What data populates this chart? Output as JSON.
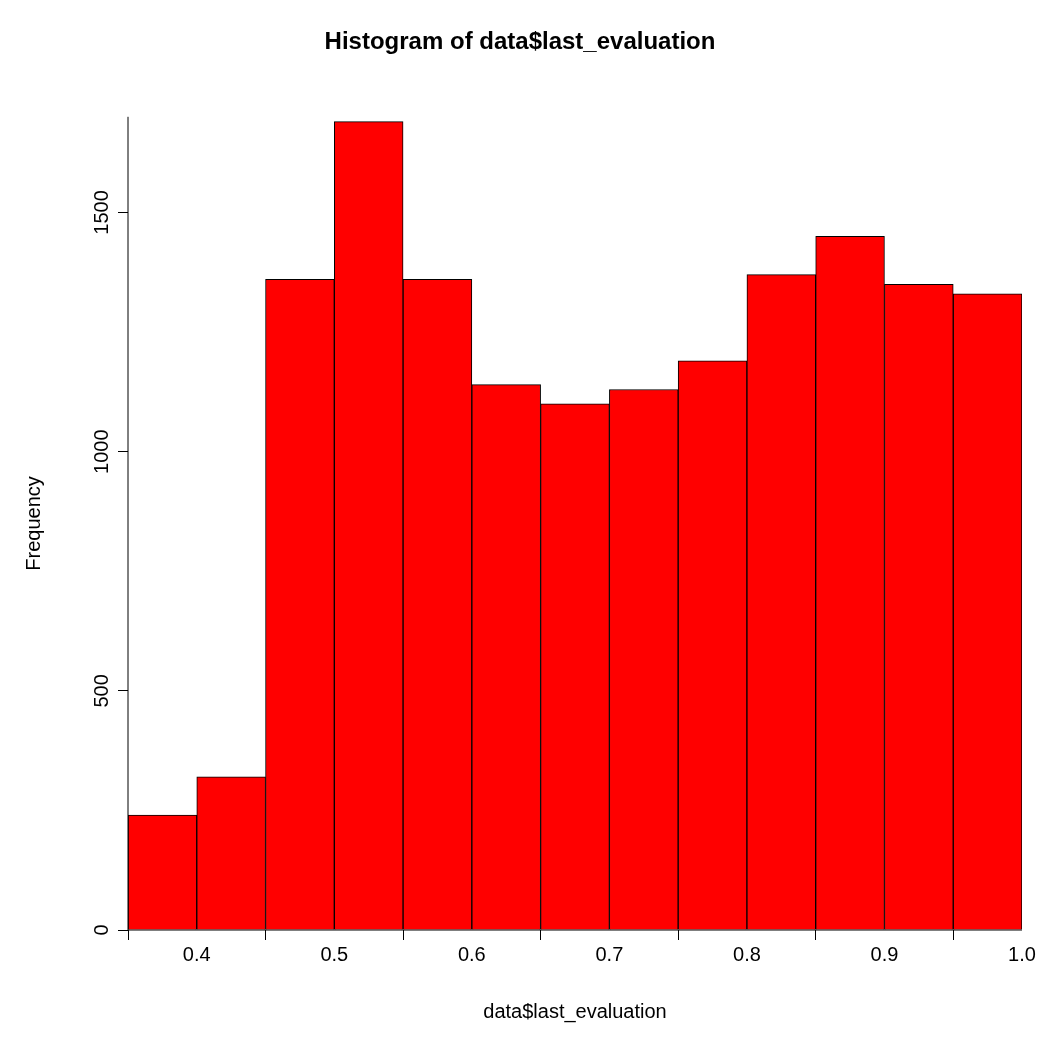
{
  "chart_data": {
    "type": "histogram",
    "title": "Histogram of data$last_evaluation",
    "xlabel": "data$last_evaluation",
    "ylabel": "Frequency",
    "bins": [
      0.35,
      0.4,
      0.45,
      0.5,
      0.55,
      0.6,
      0.65,
      0.7,
      0.75,
      0.8,
      0.85,
      0.9,
      0.95,
      1.0
    ],
    "values": [
      240,
      320,
      1360,
      1690,
      1360,
      1140,
      1100,
      1130,
      1190,
      1370,
      1450,
      1350,
      1330
    ],
    "color": "#ff0000",
    "xlim": [
      0.35,
      1.0
    ],
    "xticks": [
      0.4,
      0.5,
      0.6,
      0.7,
      0.8,
      0.9,
      {
        "value": 1.0,
        "label": "1.0"
      }
    ],
    "ylim": [
      0,
      1700
    ],
    "yticks": [
      0,
      500,
      1000,
      1500
    ]
  }
}
